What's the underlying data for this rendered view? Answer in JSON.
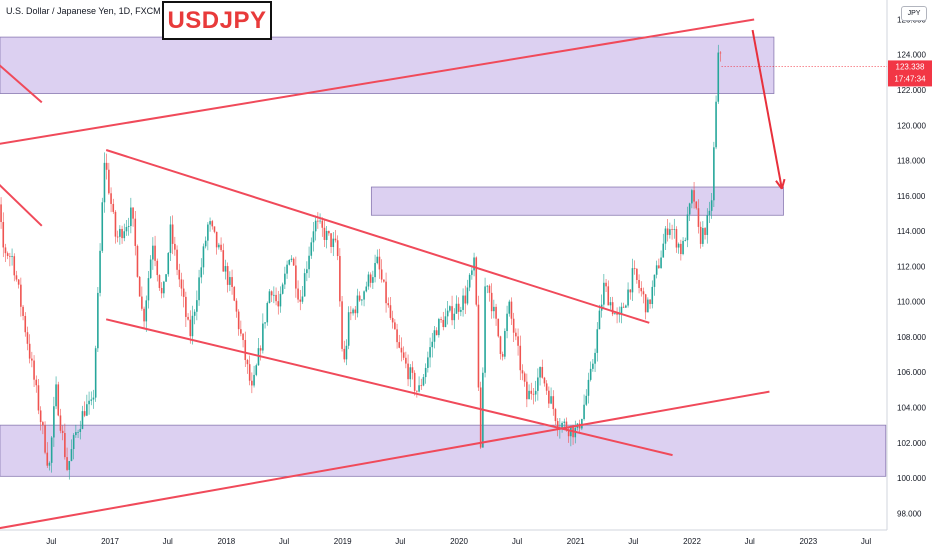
{
  "header": {
    "symbol_description": "U.S. Dollar / Japanese Yen, 1D, FXCM",
    "title": "USDJPY",
    "currency_badge": "JPY"
  },
  "price_label": {
    "value": "123.338",
    "countdown": "17:47:34",
    "color": "#f23645"
  },
  "colors": {
    "candle_up": "#26a69a",
    "candle_down": "#ef5350",
    "trendline": "#f04a5a",
    "zone_fill": "#d8cbef",
    "zone_border": "#8a7ab2",
    "arrow": "#e8303c"
  },
  "chart_data": {
    "type": "candlestick",
    "title": "USDJPY",
    "ylim": [
      97,
      127.5
    ],
    "y_ticks": [
      "98.000",
      "100.000",
      "102.000",
      "104.000",
      "106.000",
      "108.000",
      "110.000",
      "112.000",
      "114.000",
      "116.000",
      "118.000",
      "120.000",
      "122.000",
      "124.000",
      "126.000"
    ],
    "x_ticks": [
      "Jul",
      "2017",
      "Jul",
      "2018",
      "Jul",
      "2019",
      "Jul",
      "2020",
      "Jul",
      "2021",
      "Jul",
      "2022",
      "Jul",
      "2023",
      "Jul"
    ],
    "x_ticks_at": [
      "2016-07-01",
      "2017-01-01",
      "2017-07-01",
      "2018-01-01",
      "2018-07-01",
      "2019-01-01",
      "2019-07-01",
      "2020-01-01",
      "2020-07-01",
      "2021-01-01",
      "2021-07-01",
      "2022-01-01",
      "2022-07-01",
      "2023-01-01",
      "2023-07-01"
    ],
    "price_path": [
      [
        "2015-12-01",
        121.0
      ],
      [
        "2016-01-01",
        118.0
      ],
      [
        "2016-02-01",
        113.0
      ],
      [
        "2016-03-01",
        112.5
      ],
      [
        "2016-04-15",
        108.0
      ],
      [
        "2016-06-24",
        100.5
      ],
      [
        "2016-07-15",
        105.0
      ],
      [
        "2016-08-20",
        100.5
      ],
      [
        "2016-09-15",
        102.5
      ],
      [
        "2016-10-15",
        104.0
      ],
      [
        "2016-11-08",
        104.0
      ],
      [
        "2016-12-15",
        118.2
      ],
      [
        "2017-01-20",
        113.5
      ],
      [
        "2017-03-10",
        115.0
      ],
      [
        "2017-04-15",
        108.8
      ],
      [
        "2017-05-15",
        113.5
      ],
      [
        "2017-06-15",
        110.0
      ],
      [
        "2017-07-10",
        114.0
      ],
      [
        "2017-09-08",
        108.0
      ],
      [
        "2017-11-06",
        114.5
      ],
      [
        "2017-12-15",
        112.5
      ],
      [
        "2018-01-20",
        110.5
      ],
      [
        "2018-03-23",
        104.8
      ],
      [
        "2018-05-20",
        111.0
      ],
      [
        "2018-06-15",
        109.5
      ],
      [
        "2018-07-20",
        113.0
      ],
      [
        "2018-08-20",
        110.0
      ],
      [
        "2018-10-04",
        114.5
      ],
      [
        "2018-12-15",
        113.0
      ],
      [
        "2019-01-03",
        106.0
      ],
      [
        "2019-01-20",
        109.0
      ],
      [
        "2019-04-20",
        112.2
      ],
      [
        "2019-06-20",
        107.5
      ],
      [
        "2019-08-26",
        104.8
      ],
      [
        "2019-10-20",
        108.5
      ],
      [
        "2019-12-15",
        109.5
      ],
      [
        "2020-01-20",
        110.2
      ],
      [
        "2020-02-20",
        112.2
      ],
      [
        "2020-03-09",
        101.2
      ],
      [
        "2020-03-24",
        111.7
      ],
      [
        "2020-05-15",
        107.0
      ],
      [
        "2020-06-05",
        109.8
      ],
      [
        "2020-07-31",
        104.5
      ],
      [
        "2020-09-15",
        106.0
      ],
      [
        "2020-11-06",
        103.2
      ],
      [
        "2021-01-06",
        102.6
      ],
      [
        "2021-02-15",
        105.5
      ],
      [
        "2021-03-31",
        110.9
      ],
      [
        "2021-05-15",
        108.8
      ],
      [
        "2021-07-01",
        111.6
      ],
      [
        "2021-08-15",
        109.6
      ],
      [
        "2021-10-20",
        114.5
      ],
      [
        "2021-12-01",
        112.8
      ],
      [
        "2022-01-04",
        116.3
      ],
      [
        "2022-01-24",
        113.5
      ],
      [
        "2022-03-01",
        114.9
      ],
      [
        "2022-03-28",
        125.1
      ],
      [
        "2022-04-04",
        123.3
      ]
    ],
    "zones": [
      {
        "from": "2015-12-01",
        "to": "2022-09-15",
        "low": 121.8,
        "high": 125.0
      },
      {
        "from": "2019-04-01",
        "to": "2022-10-15",
        "low": 114.9,
        "high": 116.5
      },
      {
        "from": "2015-12-01",
        "to": "2023-09-01",
        "low": 100.1,
        "high": 103.0
      }
    ],
    "trendlines": [
      {
        "x1": "2015-12-01",
        "y1": 118.8,
        "x2": "2022-07-15",
        "y2": 126.0
      },
      {
        "x1": "2015-12-01",
        "y1": 97.0,
        "x2": "2022-09-01",
        "y2": 104.9
      },
      {
        "x1": "2016-12-20",
        "y1": 118.6,
        "x2": "2021-08-20",
        "y2": 108.8
      },
      {
        "x1": "2016-12-20",
        "y1": 109.0,
        "x2": "2021-11-01",
        "y2": 101.3
      },
      {
        "x1": "2015-12-01",
        "y1": 124.2,
        "x2": "2016-06-01",
        "y2": 121.3
      },
      {
        "x1": "2015-12-01",
        "y1": 117.5,
        "x2": "2016-06-01",
        "y2": 114.3
      }
    ],
    "arrow": {
      "x1": "2022-07-10",
      "y1": 125.4,
      "x2": "2022-10-10",
      "y2": 116.4
    }
  }
}
